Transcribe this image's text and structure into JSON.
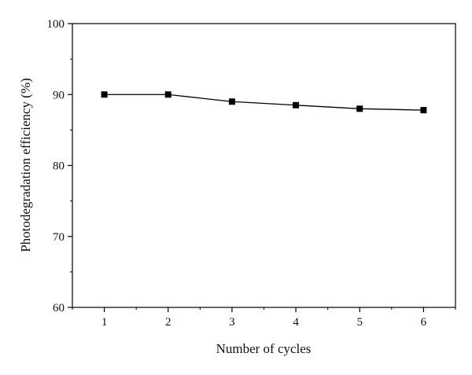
{
  "chart_data": {
    "type": "line",
    "xlabel": "Number of cycles",
    "ylabel": "Photodegradation efficiency (%)",
    "x": [
      1,
      2,
      3,
      4,
      5,
      6
    ],
    "xticks": [
      "1",
      "2",
      "3",
      "4",
      "5",
      "6"
    ],
    "xlim": [
      0.5,
      6.5
    ],
    "ylim": [
      60,
      100
    ],
    "yticks": [
      "60",
      "70",
      "80",
      "90",
      "100"
    ],
    "series": [
      {
        "values": [
          90.0,
          90.0,
          89.0,
          88.5,
          88.0,
          87.8
        ],
        "marker": "square",
        "color": "#000000"
      }
    ],
    "grid": false,
    "legend": "none"
  }
}
